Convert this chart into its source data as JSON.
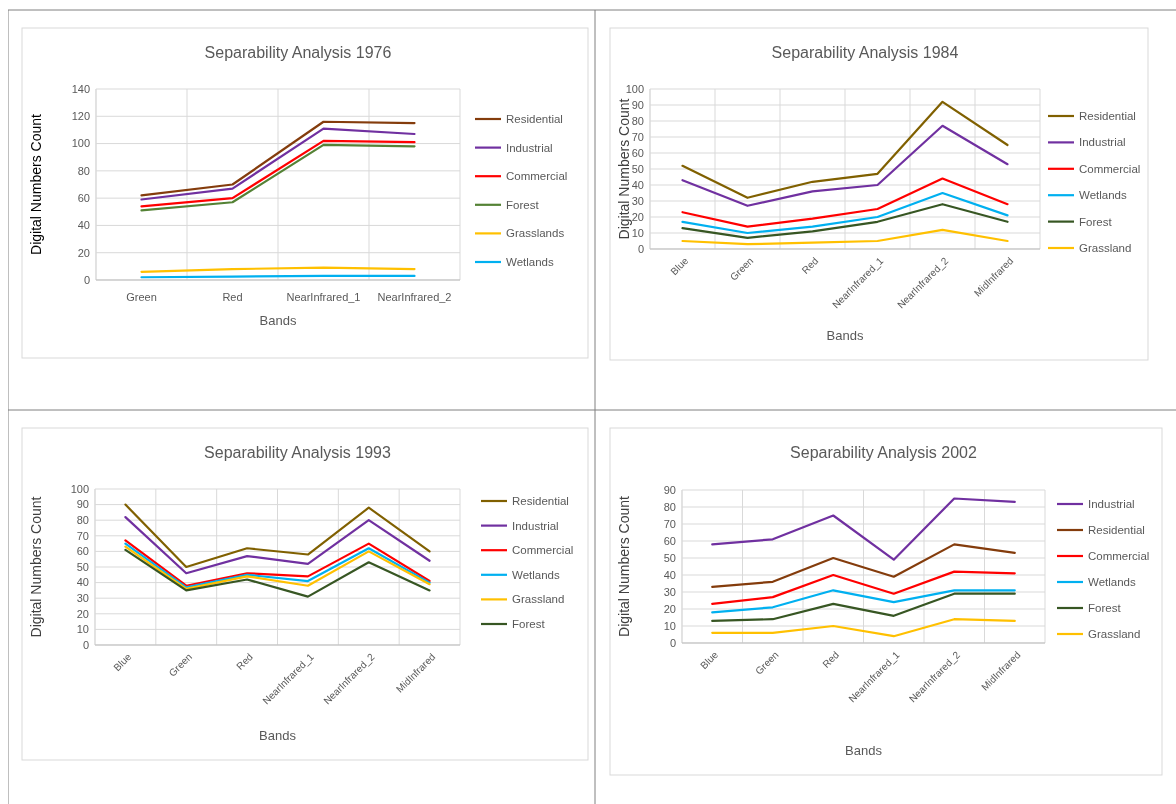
{
  "chart_data": [
    {
      "type": "line",
      "title": "Separability Analysis 1976",
      "xlabel": "Bands",
      "ylabel": "Digital Numbers Count",
      "categories": [
        "Green",
        "Red",
        "NearInfrared_1",
        "NearInfrared_2"
      ],
      "ylim": [
        0,
        140
      ],
      "yticks": [
        0,
        20,
        40,
        60,
        80,
        100,
        120,
        140
      ],
      "grid": true,
      "legend": "right",
      "series": [
        {
          "name": "Residential",
          "color": "#843c0c",
          "values": [
            62,
            70,
            116,
            115
          ]
        },
        {
          "name": "Industrial",
          "color": "#7030a0",
          "values": [
            59,
            67,
            111,
            107
          ]
        },
        {
          "name": "Commercial",
          "color": "#ff0000",
          "values": [
            54,
            60,
            102,
            101
          ]
        },
        {
          "name": "Forest",
          "color": "#548235",
          "values": [
            51,
            57,
            99,
            98
          ]
        },
        {
          "name": "Grasslands",
          "color": "#ffc000",
          "values": [
            6,
            8,
            9,
            8
          ]
        },
        {
          "name": "Wetlands",
          "color": "#00b0f0",
          "values": [
            2,
            2.5,
            3,
            3
          ]
        }
      ]
    },
    {
      "type": "line",
      "title": "Separability Analysis 1984",
      "xlabel": "Bands",
      "ylabel": "Digital Numbers Count",
      "categories": [
        "Blue",
        "Green",
        "Red",
        "NearInfrared_1",
        "NearInfrared_2",
        "MidInfrared"
      ],
      "ylim": [
        0,
        100
      ],
      "yticks": [
        0,
        10,
        20,
        30,
        40,
        50,
        60,
        70,
        80,
        90,
        100
      ],
      "grid": true,
      "legend": "right",
      "series": [
        {
          "name": "Residential",
          "color": "#806000",
          "values": [
            52,
            32,
            42,
            47,
            92,
            65
          ]
        },
        {
          "name": "Industrial",
          "color": "#7030a0",
          "values": [
            43,
            27,
            36,
            40,
            77,
            53
          ]
        },
        {
          "name": "Commercial",
          "color": "#ff0000",
          "values": [
            23,
            14,
            19,
            25,
            44,
            28
          ]
        },
        {
          "name": "Wetlands",
          "color": "#00b0f0",
          "values": [
            17,
            10,
            14,
            20,
            35,
            21
          ]
        },
        {
          "name": "Forest",
          "color": "#375623",
          "values": [
            13,
            7,
            11,
            17,
            28,
            17
          ]
        },
        {
          "name": "Grassland",
          "color": "#ffc000",
          "values": [
            5,
            3,
            4,
            5,
            12,
            5
          ]
        }
      ]
    },
    {
      "type": "line",
      "title": "Separability Analysis 1993",
      "xlabel": "Bands",
      "ylabel": "Digital Numbers Count",
      "categories": [
        "Blue",
        "Green",
        "Red",
        "NearInfrared_1",
        "NearInfrared_2",
        "MidInfrared"
      ],
      "ylim": [
        0,
        100
      ],
      "yticks": [
        0,
        10,
        20,
        30,
        40,
        50,
        60,
        70,
        80,
        90,
        100
      ],
      "grid": true,
      "legend": "right",
      "series": [
        {
          "name": "Residential",
          "color": "#806000",
          "values": [
            90,
            50,
            62,
            58,
            88,
            60
          ]
        },
        {
          "name": "Industrial",
          "color": "#7030a0",
          "values": [
            82,
            46,
            57,
            52,
            80,
            54
          ]
        },
        {
          "name": "Commercial",
          "color": "#ff0000",
          "values": [
            67,
            38,
            46,
            44,
            65,
            41
          ]
        },
        {
          "name": "Wetlands",
          "color": "#00b0f0",
          "values": [
            65,
            37,
            45,
            41,
            62,
            40
          ]
        },
        {
          "name": "Grassland",
          "color": "#ffc000",
          "values": [
            63,
            36,
            44,
            38,
            60,
            39
          ]
        },
        {
          "name": "Forest",
          "color": "#375623",
          "values": [
            61,
            35,
            42,
            31,
            53,
            35
          ]
        }
      ]
    },
    {
      "type": "line",
      "title": "Separability Analysis 2002",
      "xlabel": "Bands",
      "ylabel": "Digital Numbers Count",
      "categories": [
        "Blue",
        "Green",
        "Red",
        "NearInfrared_1",
        "NearInfrared_2",
        "MidInfrared"
      ],
      "ylim": [
        0,
        90
      ],
      "yticks": [
        0,
        10,
        20,
        30,
        40,
        50,
        60,
        70,
        80,
        90
      ],
      "grid": true,
      "legend": "right",
      "series": [
        {
          "name": "Industrial",
          "color": "#7030a0",
          "values": [
            58,
            61,
            75,
            49,
            85,
            83
          ]
        },
        {
          "name": "Residential",
          "color": "#843c0c",
          "values": [
            33,
            36,
            50,
            39,
            58,
            53
          ]
        },
        {
          "name": "Commercial",
          "color": "#ff0000",
          "values": [
            23,
            27,
            40,
            29,
            42,
            41
          ]
        },
        {
          "name": "Wetlands",
          "color": "#00b0f0",
          "values": [
            18,
            21,
            31,
            24,
            31,
            31
          ]
        },
        {
          "name": "Forest",
          "color": "#375623",
          "values": [
            13,
            14,
            23,
            16,
            29,
            29
          ]
        },
        {
          "name": "Grassland",
          "color": "#ffc000",
          "values": [
            6,
            6,
            10,
            4,
            14,
            13
          ]
        }
      ]
    }
  ]
}
